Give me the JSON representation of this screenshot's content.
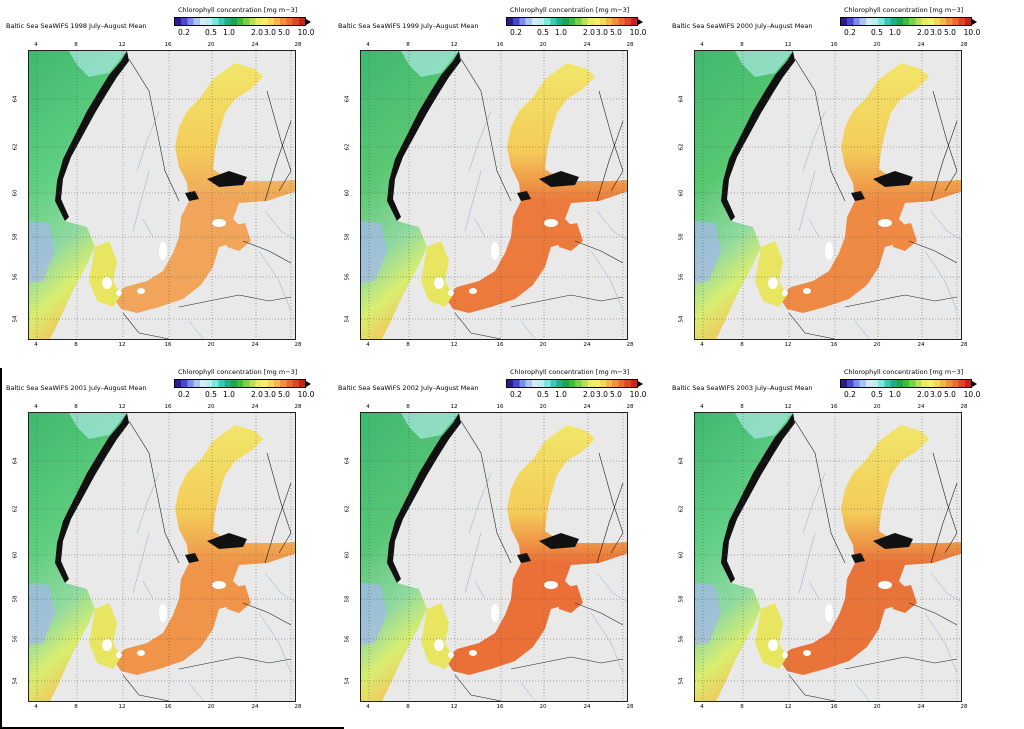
{
  "colorbar": {
    "title": "Chlorophyll concentration [mg m−3]",
    "ticks": [
      "0.2",
      "0.5",
      "1.0",
      "2.0",
      "3.0",
      "5.0",
      "10.0"
    ],
    "colors": [
      "#2a1c8c",
      "#4b49c8",
      "#7a8ee8",
      "#a9c6f2",
      "#d2ebf7",
      "#b7f0ee",
      "#7de6dd",
      "#3ac9b4",
      "#1fb08a",
      "#22a34d",
      "#3dbb3d",
      "#79d04a",
      "#b8df55",
      "#e7ec62",
      "#f6ee6a",
      "#f7d65a",
      "#f5b64b",
      "#f0913f",
      "#e96a33",
      "#df4527",
      "#c8221e"
    ]
  },
  "panels": [
    {
      "title": "Baltic Sea SeaWiFS 1998 July–August Mean",
      "tint": "#f0a55a",
      "west": "#5fcf80"
    },
    {
      "title": "Baltic Sea SeaWiFS 1999 July–August Mean",
      "tint": "#ec7a3c",
      "west": "#5cc874"
    },
    {
      "title": "Baltic Sea SeaWiFS 2000 July–August Mean",
      "tint": "#ee8a44",
      "west": "#58c870"
    },
    {
      "title": "Baltic Sea SeaWiFS 2001 July–August Mean",
      "tint": "#ef9448",
      "west": "#5dce7c"
    },
    {
      "title": "Baltic Sea SeaWiFS 2002 July–August Mean",
      "tint": "#ea7038",
      "west": "#59c676"
    },
    {
      "title": "Baltic Sea SeaWiFS 2003 July–August Mean",
      "tint": "#e8743a",
      "west": "#62cf86"
    }
  ],
  "axes": {
    "lon_ticks": [
      "4",
      "8",
      "12",
      "16",
      "20",
      "24",
      "28"
    ],
    "lat_ticks": [
      "64",
      "62",
      "60",
      "58",
      "56",
      "54"
    ]
  }
}
